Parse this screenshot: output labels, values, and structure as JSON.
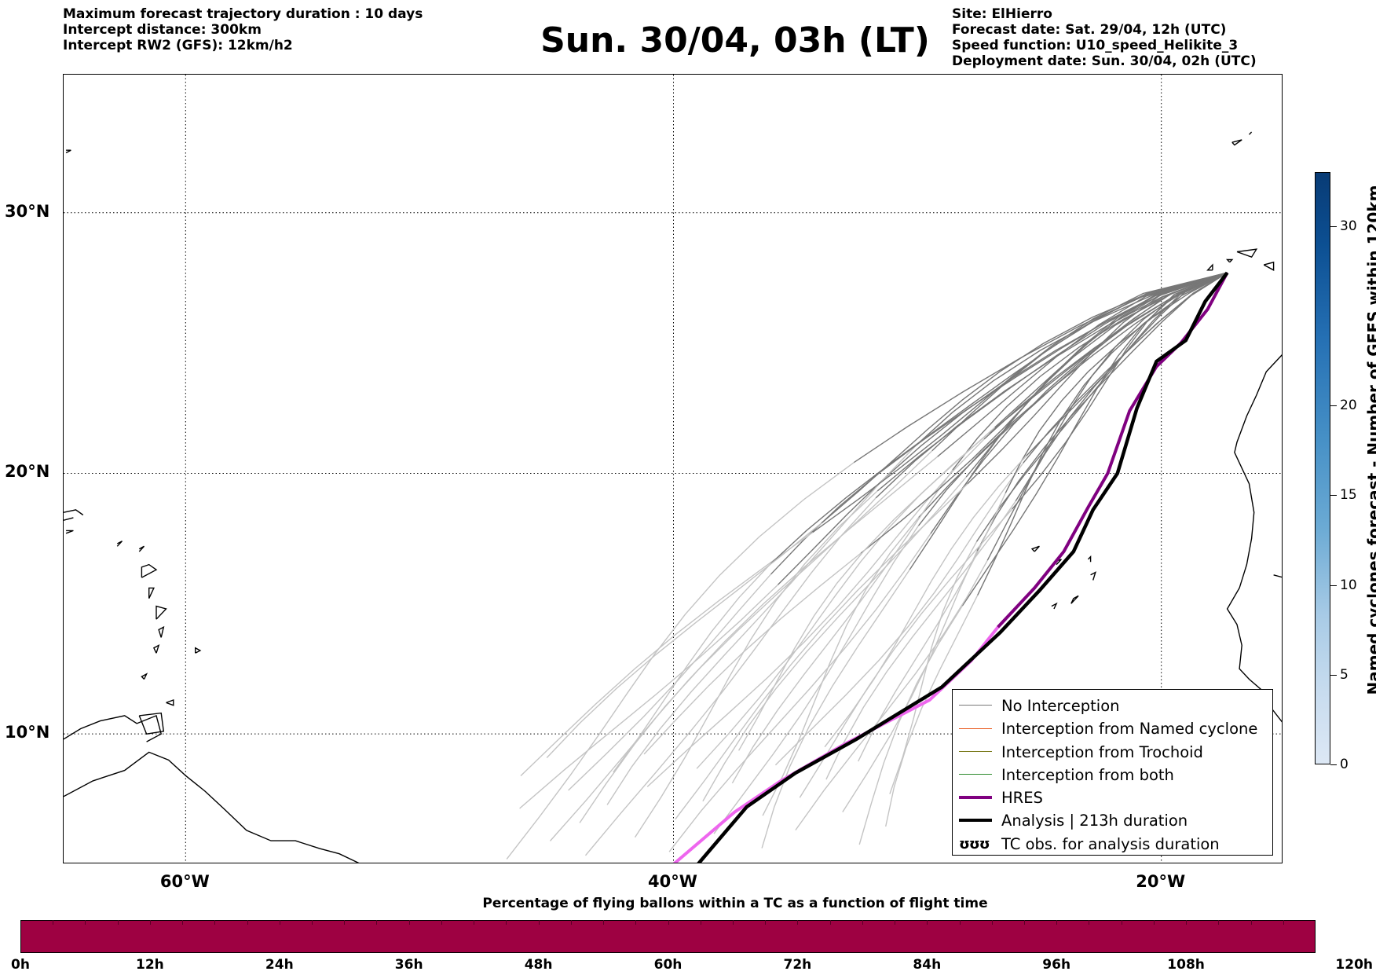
{
  "header_left": [
    "Maximum forecast trajectory duration : 10 days",
    "Intercept distance: 300km",
    "Intercept RW2 (GFS):  12km/h2"
  ],
  "title": "Sun. 30/04, 03h (LT)",
  "header_right": [
    "Site: ElHierro",
    "Forecast date: Sat. 29/04, 12h (UTC)",
    "Speed function: U10_speed_Helikite_3",
    "Deployment date: Sun. 30/04, 02h (UTC)"
  ],
  "map": {
    "lon_range": [
      -65,
      -15
    ],
    "lat_range": [
      5,
      35.3
    ],
    "lat_ticks": [
      {
        "value": 30,
        "label": "30°N"
      },
      {
        "value": 20,
        "label": "20°N"
      },
      {
        "value": 10,
        "label": "10°N"
      }
    ],
    "lon_ticks": [
      {
        "value": -60,
        "label": "60°W"
      },
      {
        "value": -40,
        "label": "40°W"
      },
      {
        "value": -20,
        "label": "20°W"
      }
    ],
    "grid": "dotted",
    "colors": {
      "no_interception": "#777777",
      "ensemble_light": "#c4c4c4",
      "named_cyclone": "#e8571a",
      "trochoid": "#7a7a1a",
      "both": "#2e8b2e",
      "hres": "#800080",
      "hres_light": "#ee66ee",
      "analysis": "#000000"
    },
    "analysis_track": [
      [
        -17.3,
        27.7
      ],
      [
        -18.2,
        26.6
      ],
      [
        -19.0,
        25.1
      ],
      [
        -20.2,
        24.3
      ],
      [
        -21.0,
        22.5
      ],
      [
        -21.8,
        20.0
      ],
      [
        -22.8,
        18.6
      ],
      [
        -23.6,
        17.0
      ],
      [
        -25.0,
        15.5
      ],
      [
        -26.6,
        13.9
      ],
      [
        -29.0,
        11.8
      ],
      [
        -32.5,
        9.8
      ],
      [
        -35.0,
        8.5
      ],
      [
        -37.0,
        7.2
      ],
      [
        -39.0,
        5.0
      ]
    ],
    "hres_track": [
      [
        -17.3,
        27.7
      ],
      [
        -18.1,
        26.3
      ],
      [
        -19.2,
        25.0
      ],
      [
        -20.2,
        24.1
      ],
      [
        -21.3,
        22.4
      ],
      [
        -22.2,
        20.0
      ],
      [
        -23.0,
        18.7
      ],
      [
        -24.0,
        17.0
      ],
      [
        -25.2,
        15.6
      ],
      [
        -26.7,
        14.1
      ],
      [
        -27.8,
        12.8
      ],
      [
        -29.5,
        11.3
      ],
      [
        -33.0,
        9.6
      ],
      [
        -35.6,
        8.2
      ],
      [
        -37.5,
        7.0
      ],
      [
        -40.0,
        5.0
      ]
    ]
  },
  "legend": {
    "items": [
      {
        "label": "No Interception",
        "color": "#777777",
        "width": 1.5
      },
      {
        "label": "Interception from Named cyclone",
        "color": "#e8571a",
        "width": 1.5
      },
      {
        "label": "Interception from Trochoid",
        "color": "#7a7a1a",
        "width": 1.5
      },
      {
        "label": "Interception from both",
        "color": "#2e8b2e",
        "width": 1.5
      },
      {
        "label": "HRES",
        "color": "#800080",
        "width": 4
      },
      {
        "label": "Analysis | 213h duration",
        "color": "#000000",
        "width": 4
      }
    ],
    "tc_symbol": "ʊʊʊ",
    "tc_label": "TC obs. for analysis duration"
  },
  "colorbar_vertical": {
    "title": "Named cyclones forecast - Number of GEFS within 120km",
    "min": 0,
    "max": 33,
    "ticks": [
      0,
      5,
      10,
      15,
      20,
      30
    ]
  },
  "colorbar_horizontal": {
    "title": "Percentage of flying ballons within a TC as a function of flight time",
    "color": "#9e0142",
    "ticks": [
      "0h",
      "12h",
      "24h",
      "36h",
      "48h",
      "60h",
      "72h",
      "84h",
      "96h",
      "108h",
      "120h"
    ]
  }
}
